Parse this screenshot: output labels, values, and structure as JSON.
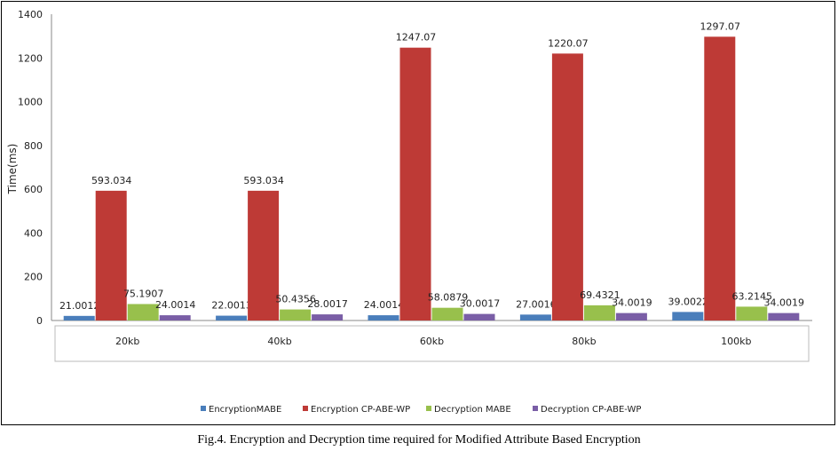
{
  "chart_data": {
    "type": "bar",
    "ylabel": "Time(ms)",
    "ylim": [
      0,
      1400
    ],
    "yticks": [
      0,
      200,
      400,
      600,
      800,
      1000,
      1200,
      1400
    ],
    "categories": [
      "20kb",
      "40kb",
      "60kb",
      "80kb",
      "100kb"
    ],
    "series": [
      {
        "name": "EncryptionMABE",
        "color": "#4a7ebb",
        "values": [
          21.0012,
          22.0013,
          24.0014,
          27.0016,
          39.0022
        ]
      },
      {
        "name": "Encryption CP-ABE-WP",
        "color": "#be3a36",
        "values": [
          593.034,
          593.034,
          1247.07,
          1220.07,
          1297.07
        ]
      },
      {
        "name": "Decryption MABE",
        "color": "#98c04c",
        "values": [
          75.1907,
          50.4356,
          58.0879,
          69.4321,
          63.2145
        ]
      },
      {
        "name": "Decryption CP-ABE-WP",
        "color": "#7a5ea6",
        "values": [
          24.0014,
          28.0017,
          30.0017,
          34.0019,
          34.0019
        ]
      }
    ],
    "legend_position": "bottom",
    "grid": false
  },
  "caption": "Fig.4. Encryption and Decryption time required for Modified Attribute Based Encryption"
}
